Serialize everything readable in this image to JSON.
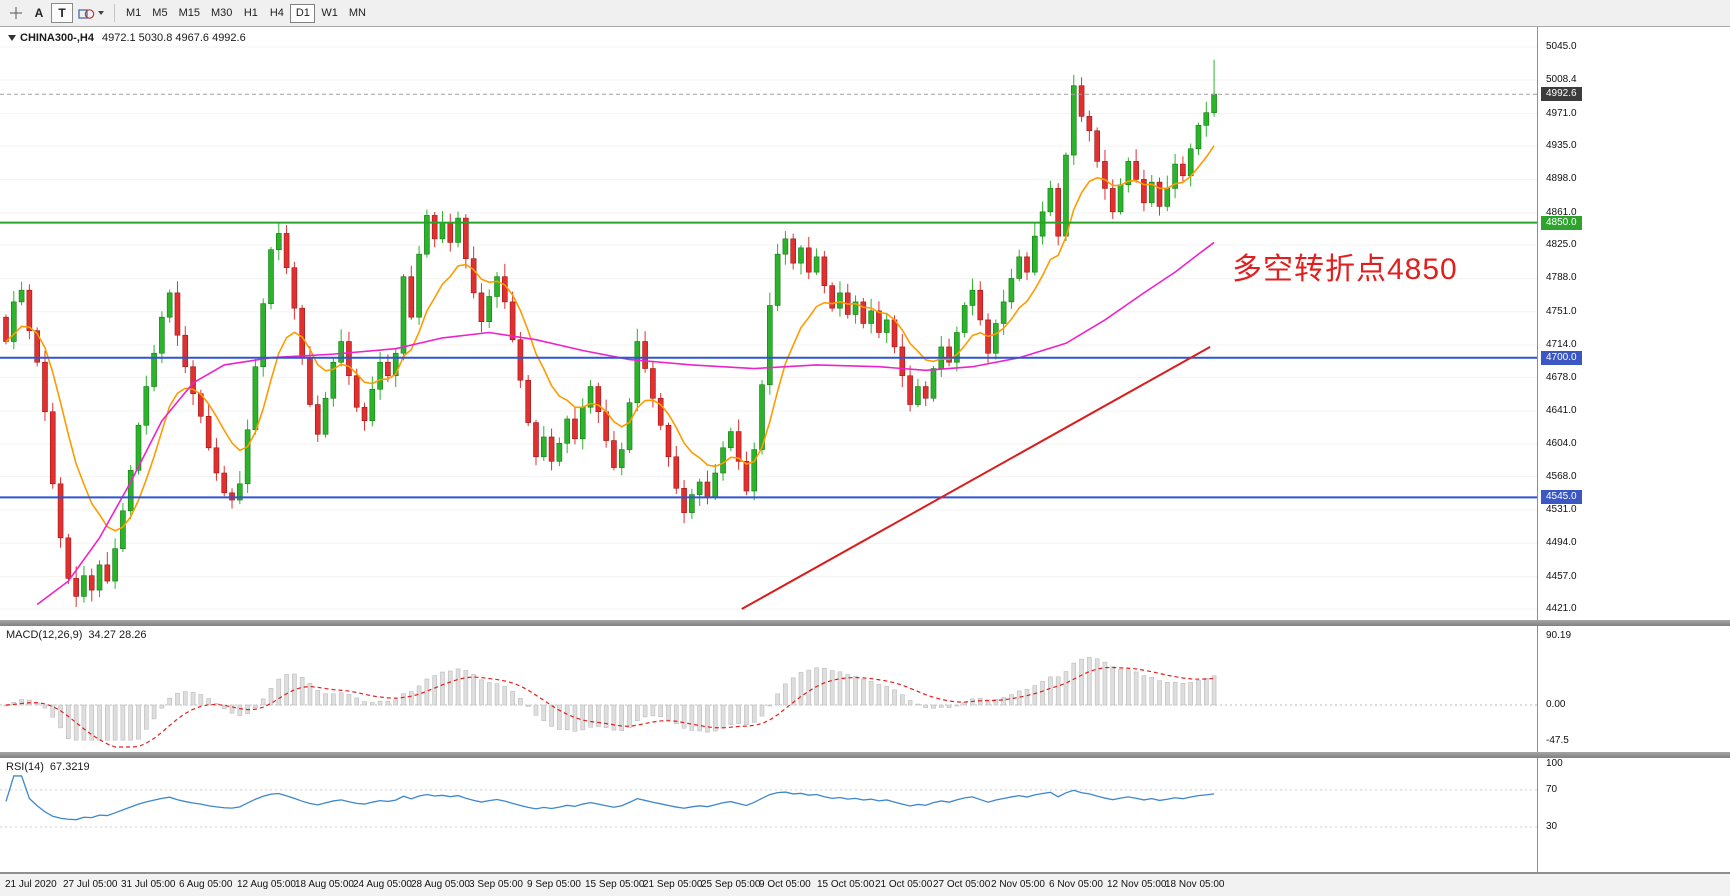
{
  "toolbar": {
    "tools": [
      {
        "id": "cursor"
      },
      {
        "id": "text",
        "label": "A"
      },
      {
        "id": "textbox",
        "label": "T",
        "active": true
      },
      {
        "id": "shapes"
      }
    ],
    "timeframes": [
      "M1",
      "M5",
      "M15",
      "M30",
      "H1",
      "H4",
      "D1",
      "W1",
      "MN"
    ],
    "active_timeframe": "D1"
  },
  "chart": {
    "title": "CHINA300-,H4",
    "ohlc": "4972.1 5030.8 4967.6 4992.6",
    "annotation": "多空转折点4850",
    "annotation_color": "#e02020"
  },
  "price_axis": {
    "max": 5045.0,
    "min": 4421.0,
    "ticks": [
      "5045.0",
      "5008.4",
      "4971.0",
      "4935.0",
      "4898.0",
      "4861.0",
      "4825.0",
      "4788.0",
      "4751.0",
      "4714.0",
      "4678.0",
      "4641.0",
      "4604.0",
      "4568.0",
      "4531.0",
      "4494.0",
      "4457.0",
      "4421.0"
    ],
    "current": {
      "label": "4992.6",
      "price": 4992.6,
      "bg": "#3c3c3c"
    },
    "line_badges": [
      {
        "label": "4850.0",
        "price": 4850.0,
        "bg": "#2ea32e"
      },
      {
        "label": "4700.0",
        "price": 4700.0,
        "bg": "#3a57c4"
      },
      {
        "label": "4545.0",
        "price": 4545.0,
        "bg": "#3a57c4"
      }
    ]
  },
  "time_axis": {
    "labels": [
      "21 Jul 2020",
      "27 Jul 05:00",
      "31 Jul 05:00",
      "6 Aug 05:00",
      "12 Aug 05:00",
      "18 Aug 05:00",
      "24 Aug 05:00",
      "28 Aug 05:00",
      "3 Sep 05:00",
      "9 Sep 05:00",
      "15 Sep 05:00",
      "21 Sep 05:00",
      "25 Sep 05:00",
      "9 Oct 05:00",
      "15 Oct 05:00",
      "21 Oct 05:00",
      "27 Oct 05:00",
      "2 Nov 05:00",
      "6 Nov 05:00",
      "12 Nov 05:00",
      "18 Nov 05:00"
    ]
  },
  "indicators": {
    "macd": {
      "name": "MACD(12,26,9)",
      "values": "34.27 28.26",
      "axis_labels": [
        "90.19",
        "0.00",
        "-47.5"
      ],
      "axis_values": [
        90.19,
        0,
        -47.5
      ]
    },
    "rsi": {
      "name": "RSI(14)",
      "value": "67.3219",
      "axis_labels": [
        "100",
        "70",
        "30"
      ],
      "axis_values": [
        100,
        70,
        30
      ]
    }
  },
  "chart_data": {
    "type": "candlestick",
    "symbol": "CHINA300-",
    "period": "H4",
    "first_open": 4745,
    "closes": [
      4718,
      4762,
      4775,
      4730,
      4695,
      4640,
      4560,
      4500,
      4455,
      4435,
      4458,
      4442,
      4470,
      4452,
      4488,
      4530,
      4575,
      4625,
      4668,
      4705,
      4745,
      4772,
      4725,
      4690,
      4660,
      4635,
      4600,
      4572,
      4550,
      4542,
      4560,
      4620,
      4690,
      4760,
      4820,
      4838,
      4800,
      4755,
      4700,
      4648,
      4615,
      4655,
      4695,
      4718,
      4680,
      4645,
      4630,
      4665,
      4695,
      4680,
      4705,
      4790,
      4745,
      4815,
      4858,
      4832,
      4850,
      4828,
      4855,
      4810,
      4772,
      4740,
      4768,
      4790,
      4762,
      4720,
      4675,
      4628,
      4590,
      4612,
      4585,
      4605,
      4632,
      4610,
      4645,
      4668,
      4640,
      4608,
      4578,
      4598,
      4650,
      4718,
      4688,
      4655,
      4625,
      4590,
      4555,
      4528,
      4548,
      4562,
      4545,
      4572,
      4600,
      4618,
      4585,
      4552,
      4598,
      4670,
      4758,
      4815,
      4832,
      4805,
      4822,
      4795,
      4812,
      4780,
      4755,
      4772,
      4748,
      4762,
      4738,
      4752,
      4728,
      4742,
      4712,
      4680,
      4648,
      4668,
      4655,
      4688,
      4712,
      4695,
      4728,
      4758,
      4775,
      4742,
      4705,
      4738,
      4762,
      4788,
      4812,
      4795,
      4835,
      4862,
      4888,
      4835,
      4925,
      5002,
      4968,
      4952,
      4918,
      4888,
      4862,
      4892,
      4918,
      4898,
      4872,
      4895,
      4868,
      4888,
      4915,
      4902,
      4932,
      4958,
      4972.1,
      4992.6
    ],
    "last_ohlc": {
      "o": 4972.1,
      "h": 5030.8,
      "l": 4967.6,
      "c": 4992.6
    },
    "up_color": "#2bb32b",
    "down_color": "#e03030",
    "ma_fast": {
      "period": 10,
      "color": "#ff9b00"
    },
    "ma_slow": {
      "color": "#ee22cc",
      "points": [
        [
          4,
          4426
        ],
        [
          8,
          4452
        ],
        [
          12,
          4500
        ],
        [
          16,
          4562
        ],
        [
          20,
          4630
        ],
        [
          24,
          4672
        ],
        [
          28,
          4692
        ],
        [
          34,
          4700
        ],
        [
          42,
          4704
        ],
        [
          50,
          4710
        ],
        [
          56,
          4722
        ],
        [
          62,
          4728
        ],
        [
          68,
          4720
        ],
        [
          74,
          4708
        ],
        [
          80,
          4698
        ],
        [
          88,
          4692
        ],
        [
          96,
          4688
        ],
        [
          104,
          4692
        ],
        [
          112,
          4690
        ],
        [
          118,
          4686
        ],
        [
          124,
          4690
        ],
        [
          130,
          4700
        ],
        [
          136,
          4716
        ],
        [
          141,
          4742
        ],
        [
          146,
          4772
        ],
        [
          150,
          4795
        ],
        [
          153,
          4815
        ],
        [
          155,
          4828
        ]
      ]
    },
    "hlines": [
      {
        "price": 4850,
        "color": "#27a427"
      },
      {
        "price": 4700,
        "color": "#2f55cf"
      },
      {
        "price": 4545,
        "color": "#2f55cf"
      }
    ],
    "current_price_line": {
      "price": 4992.6,
      "color": "#a0a0a0"
    },
    "trendline": {
      "i1": 94.4,
      "p1": 4421,
      "i2": 154.5,
      "p2": 4712,
      "color": "#d81e1e"
    },
    "macd_params": {
      "fast": 12,
      "slow": 26,
      "signal": 9,
      "hist_fill": "#dedede",
      "hist_stroke": "#bcbcbc",
      "signal_color": "#e02020",
      "clamp": [
        -46,
        89
      ]
    },
    "rsi_params": {
      "period": 14,
      "color": "#3d87cc"
    }
  }
}
